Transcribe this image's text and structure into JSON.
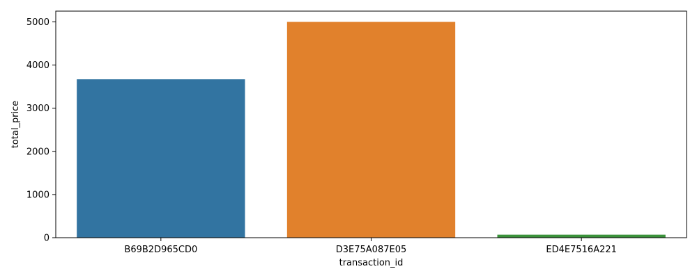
{
  "chart_data": {
    "type": "bar",
    "title": "",
    "xlabel": "transaction_id",
    "ylabel": "total_price",
    "categories": [
      "B69B2D965CD0",
      "D3E75A087E05",
      "ED4E7516A221"
    ],
    "values": [
      3670,
      5000,
      70
    ],
    "colors": [
      "#3274a1",
      "#e1812c",
      "#3a923a"
    ],
    "ylim": [
      0,
      5250
    ],
    "yticks": [
      0,
      1000,
      2000,
      3000,
      4000,
      5000
    ],
    "grid": false,
    "legend": "none"
  }
}
